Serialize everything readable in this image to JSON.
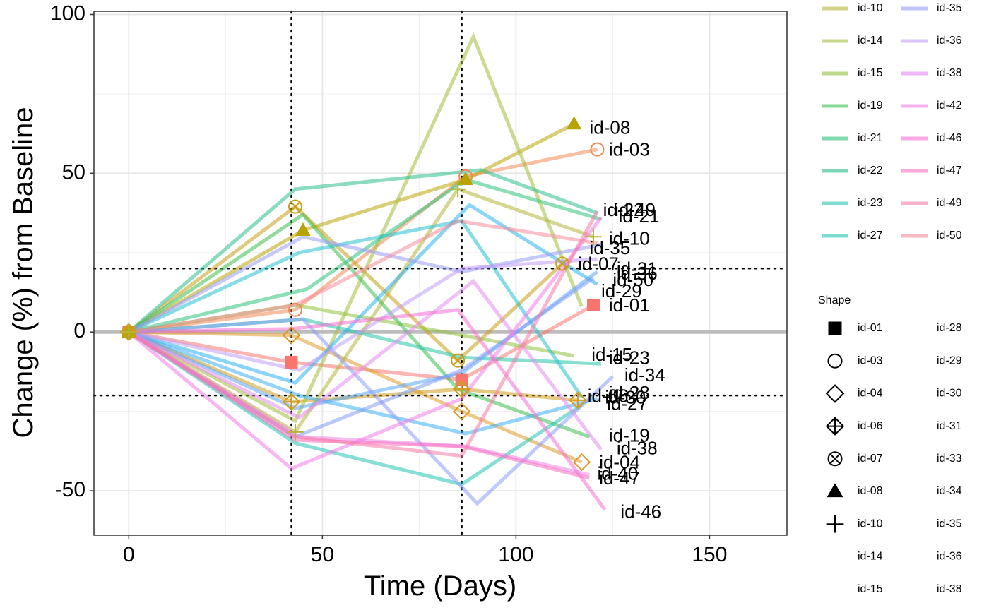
{
  "chart_data": {
    "type": "line",
    "xlabel": "Time (Days)",
    "ylabel": "Change (%) from Baseline",
    "xlim": [
      -9,
      170
    ],
    "ylim": [
      -64,
      101
    ],
    "x_ticks": [
      0,
      50,
      100,
      150
    ],
    "y_ticks": [
      -50,
      0,
      50,
      100
    ],
    "x_tick_labels": [
      "0",
      "50",
      "100",
      "150"
    ],
    "y_tick_labels": [
      "-50",
      "0",
      "50",
      "100"
    ],
    "grid": true,
    "reference_lines": {
      "vertical": [
        42,
        86
      ],
      "horizontal_dotted": [
        20,
        -20
      ],
      "horizontal_solid": [
        0
      ]
    },
    "legend_position": "right",
    "color_legend_entries": [
      {
        "label": "id-10",
        "color": "#b5b53a"
      },
      {
        "label": "id-14",
        "color": "#a3be3c"
      },
      {
        "label": "id-15",
        "color": "#8fc23c"
      },
      {
        "label": "id-19",
        "color": "#3bbf4e"
      },
      {
        "label": "id-21",
        "color": "#2ec27a"
      },
      {
        "label": "id-22",
        "color": "#2abd8a"
      },
      {
        "label": "id-23",
        "color": "#27c4a8"
      },
      {
        "label": "id-27",
        "color": "#23c4b4"
      },
      {
        "label": "id-35",
        "color": "#9a9cf8"
      },
      {
        "label": "id-36",
        "color": "#c29cf8"
      },
      {
        "label": "id-38",
        "color": "#e38af0"
      },
      {
        "label": "id-42",
        "color": "#f07be8"
      },
      {
        "label": "id-46",
        "color": "#f56fd2"
      },
      {
        "label": "id-47",
        "color": "#f770c0"
      },
      {
        "label": "id-49",
        "color": "#f77aa8"
      },
      {
        "label": "id-50",
        "color": "#f58a9a"
      }
    ],
    "shape_legend_title": "Shape",
    "shape_legend_entries": [
      {
        "label": "id-01",
        "shape": "square"
      },
      {
        "label": "id-03",
        "shape": "circle"
      },
      {
        "label": "id-04",
        "shape": "diamond"
      },
      {
        "label": "id-06",
        "shape": "diamond-plus"
      },
      {
        "label": "id-07",
        "shape": "circle-x"
      },
      {
        "label": "id-08",
        "shape": "triangle"
      },
      {
        "label": "id-10",
        "shape": "plus"
      },
      {
        "label": "id-14",
        "shape": "none"
      },
      {
        "label": "id-15",
        "shape": "none"
      },
      {
        "label": "id-28",
        "shape": "none"
      },
      {
        "label": "id-29",
        "shape": "none"
      },
      {
        "label": "id-30",
        "shape": "none"
      },
      {
        "label": "id-31",
        "shape": "none"
      },
      {
        "label": "id-33",
        "shape": "none"
      },
      {
        "label": "id-34",
        "shape": "none"
      },
      {
        "label": "id-35",
        "shape": "none"
      },
      {
        "label": "id-36",
        "shape": "none"
      },
      {
        "label": "id-38",
        "shape": "none"
      }
    ],
    "series": [
      {
        "name": "id-01",
        "color": "#f8766d",
        "shape": "square",
        "x": [
          0,
          42,
          86,
          120
        ],
        "y": [
          0,
          -9.5,
          -15,
          8.5
        ]
      },
      {
        "name": "id-03",
        "color": "#ee8a55",
        "shape": "circle",
        "x": [
          0,
          43,
          87,
          121
        ],
        "y": [
          0,
          7,
          49,
          57.5
        ]
      },
      {
        "name": "id-04",
        "color": "#de9a2a",
        "shape": "diamond",
        "x": [
          0,
          42,
          86,
          117
        ],
        "y": [
          0,
          -1,
          -25,
          -41
        ]
      },
      {
        "name": "id-06",
        "color": "#d29d1e",
        "shape": "diamond-plus",
        "x": [
          0,
          42,
          86,
          116
        ],
        "y": [
          0,
          -22,
          -18,
          -21.5
        ]
      },
      {
        "name": "id-07",
        "color": "#c89e14",
        "shape": "circle-x",
        "x": [
          0,
          43,
          85,
          112
        ],
        "y": [
          0,
          39.5,
          -9,
          21.5
        ]
      },
      {
        "name": "id-08",
        "color": "#b9a405",
        "shape": "triangle",
        "x": [
          0,
          45,
          87,
          115
        ],
        "y": [
          0,
          32,
          48,
          65.5
        ]
      },
      {
        "name": "id-10",
        "color": "#b5b53a",
        "shape": "plus",
        "x": [
          0,
          43,
          85,
          120
        ],
        "y": [
          0,
          -31.5,
          45,
          30
        ]
      },
      {
        "name": "id-14",
        "color": "#a3be3c",
        "x": [
          0,
          43,
          89,
          117
        ],
        "y": [
          0,
          -28,
          93,
          8
        ]
      },
      {
        "name": "id-15",
        "color": "#8fc23c",
        "x": [
          0,
          43,
          86,
          115
        ],
        "y": [
          0,
          8.5,
          -1,
          -7.5
        ]
      },
      {
        "name": "id-19",
        "color": "#3bbf4e",
        "x": [
          0,
          45,
          85,
          119
        ],
        "y": [
          0,
          37,
          -18,
          -33
        ]
      },
      {
        "name": "id-21",
        "color": "#2ec27a",
        "x": [
          0,
          46,
          87,
          122
        ],
        "y": [
          0,
          13.5,
          48,
          35.5
        ]
      },
      {
        "name": "id-22",
        "color": "#2abd8a",
        "x": [
          0,
          43,
          91,
          121
        ],
        "y": [
          0,
          45,
          51,
          37.5
        ]
      },
      {
        "name": "id-23",
        "color": "#27c4a8",
        "x": [
          0,
          45,
          86,
          122
        ],
        "y": [
          0,
          4,
          -8,
          -10
        ]
      },
      {
        "name": "id-27",
        "color": "#23c4b4",
        "x": [
          0,
          43,
          86,
          117
        ],
        "y": [
          0,
          -35,
          -48,
          -23
        ]
      },
      {
        "name": "id-28",
        "color": "#24bfcf",
        "x": [
          0,
          44,
          86,
          117
        ],
        "y": [
          0,
          25,
          35,
          -20.5
        ]
      },
      {
        "name": "id-29",
        "color": "#2ab0f0",
        "x": [
          0,
          43,
          88,
          121
        ],
        "y": [
          0,
          -16,
          40,
          15
        ]
      },
      {
        "name": "id-30",
        "color": "#3caef5",
        "x": [
          0,
          44,
          87,
          121
        ],
        "y": [
          0,
          -20,
          -32,
          -21
        ]
      },
      {
        "name": "id-31",
        "color": "#5aa6f8",
        "x": [
          0,
          43,
          86,
          121
        ],
        "y": [
          0,
          -24,
          -13,
          19
        ]
      },
      {
        "name": "id-33",
        "color": "#7f9cf8",
        "x": [
          0,
          43,
          86,
          120
        ],
        "y": [
          0,
          -33,
          -12,
          17
        ]
      },
      {
        "name": "id-34",
        "color": "#8c9df8",
        "x": [
          0,
          45,
          90,
          125
        ],
        "y": [
          0,
          4,
          -54,
          -14
        ]
      },
      {
        "name": "id-35",
        "color": "#9a9cf8",
        "x": [
          0,
          45,
          86,
          122
        ],
        "y": [
          0,
          30,
          19,
          27.5
        ]
      },
      {
        "name": "id-36",
        "color": "#c29cf8",
        "x": [
          0,
          44,
          86,
          121
        ],
        "y": [
          0,
          -12,
          20,
          23
        ]
      },
      {
        "name": "id-38",
        "color": "#e38af0",
        "x": [
          0,
          44,
          89,
          122
        ],
        "y": [
          0,
          -27,
          16,
          -37
        ]
      },
      {
        "name": "id-40",
        "color": "#ec85e8",
        "x": [
          0,
          44,
          87,
          119
        ],
        "y": [
          0,
          -33,
          -36,
          -45
        ]
      },
      {
        "name": "id-42",
        "color": "#f07be8",
        "x": [
          0,
          42,
          86,
          122
        ],
        "y": [
          0,
          -43,
          -21,
          36
        ]
      },
      {
        "name": "id-46",
        "color": "#f56fd2",
        "x": [
          0,
          42,
          85,
          123
        ],
        "y": [
          0,
          1,
          7,
          -56
        ]
      },
      {
        "name": "id-47",
        "color": "#f770c0",
        "x": [
          0,
          43,
          86,
          119
        ],
        "y": [
          0,
          -34,
          -36,
          -46
        ]
      },
      {
        "name": "id-49",
        "color": "#f77aa8",
        "x": [
          0,
          43,
          86,
          121
        ],
        "y": [
          0,
          -33,
          -39,
          38
        ]
      },
      {
        "name": "id-50",
        "color": "#f58a9a",
        "x": [
          0,
          43,
          85,
          121
        ],
        "y": [
          0,
          8.5,
          35,
          28
        ]
      }
    ],
    "end_labels": [
      {
        "text": "id-08",
        "x": 119,
        "y": 64
      },
      {
        "text": "id-03",
        "x": 124,
        "y": 57
      },
      {
        "text": "id-22",
        "x": 122.5,
        "y": 38
      },
      {
        "text": "id-49",
        "x": 125.5,
        "y": 38
      },
      {
        "text": "id-21",
        "x": 126.5,
        "y": 36
      },
      {
        "text": "id-10",
        "x": 124,
        "y": 29
      },
      {
        "text": "id-35",
        "x": 119,
        "y": 26
      },
      {
        "text": "id-07",
        "x": 116,
        "y": 21
      },
      {
        "text": "id-31",
        "x": 126,
        "y": 19.5
      },
      {
        "text": "id-36",
        "x": 126,
        "y": 18
      },
      {
        "text": "id-50",
        "x": 125,
        "y": 16
      },
      {
        "text": "id-29",
        "x": 122,
        "y": 12.5
      },
      {
        "text": "id-01",
        "x": 124,
        "y": 8
      },
      {
        "text": "id-15",
        "x": 119.5,
        "y": -7.5
      },
      {
        "text": "id-23",
        "x": 124,
        "y": -8.5
      },
      {
        "text": "id-34",
        "x": 128,
        "y": -14
      },
      {
        "text": "id-06",
        "x": 118.5,
        "y": -20.5
      },
      {
        "text": "id-28",
        "x": 124,
        "y": -19.5
      },
      {
        "text": "id-30",
        "x": 123,
        "y": -21
      },
      {
        "text": "id-27",
        "x": 123.5,
        "y": -23
      },
      {
        "text": "id-19",
        "x": 124,
        "y": -33
      },
      {
        "text": "id-38",
        "x": 126,
        "y": -37
      },
      {
        "text": "id-04",
        "x": 121.5,
        "y": -41.5
      },
      {
        "text": "id-40",
        "x": 121,
        "y": -45
      },
      {
        "text": "id-47",
        "x": 121.5,
        "y": -46.5
      },
      {
        "text": "id-46",
        "x": 127,
        "y": -57
      }
    ]
  }
}
